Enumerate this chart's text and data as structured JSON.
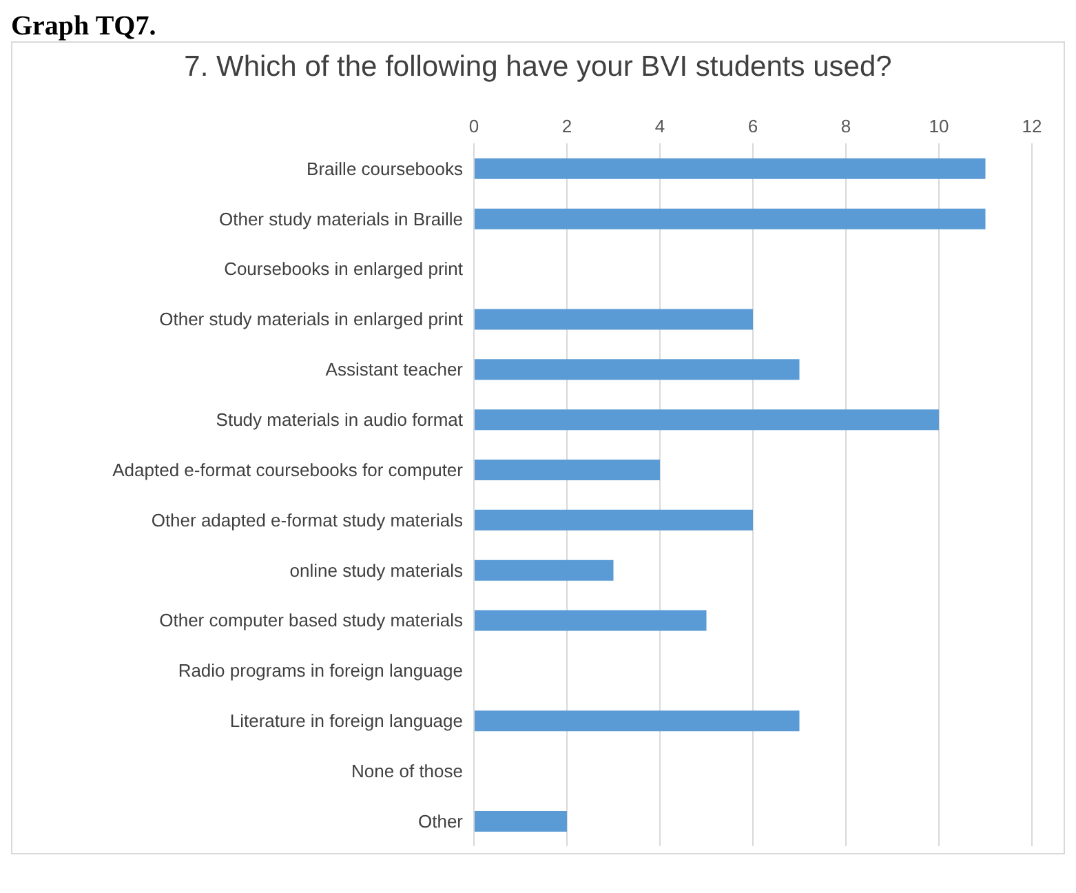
{
  "chart_data": {
    "type": "bar",
    "orientation": "horizontal",
    "title": "7. Which of the following have your BVI students used?",
    "annotations": [
      "Graph TQ7."
    ],
    "categories": [
      "Braille coursebooks",
      "Other study materials in Braille",
      "Coursebooks in enlarged print",
      "Other study materials in enlarged print",
      "Assistant teacher",
      "Study materials in audio format",
      "Adapted e-format coursebooks for computer",
      "Other adapted e-format study materials",
      "online study materials",
      "Other computer based study materials",
      "Radio programs in foreign language",
      "Literature in foreign language",
      "None of those",
      "Other"
    ],
    "values": [
      11,
      11,
      0,
      6,
      7,
      10,
      4,
      6,
      3,
      5,
      0,
      7,
      0,
      2
    ],
    "color": "#5b9bd5",
    "xlim": [
      0,
      12
    ],
    "xticks": [
      0,
      2,
      4,
      6,
      8,
      10,
      12
    ],
    "grid": "x"
  }
}
